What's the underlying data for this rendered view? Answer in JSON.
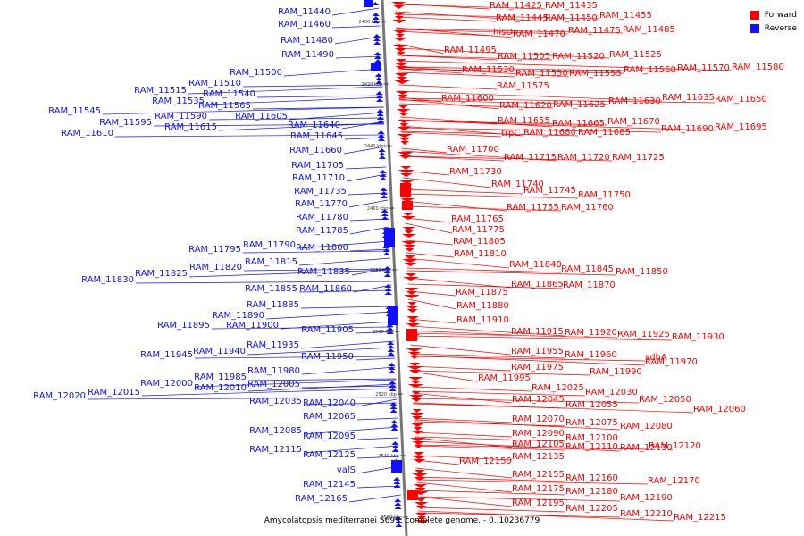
{
  "legend": {
    "forward_label": "Forward",
    "reverse_label": "Reverse",
    "forward_color": "#ff0000",
    "reverse_color": "#1010ff"
  },
  "caption": "Amycolatopsis mediterranei S699, complete genome. - 0..10236779",
  "axis_ticks": [
    "2400 kbp",
    "2420 kbp",
    "2440 kbp",
    "2460 kbp",
    "2480 kbp",
    "2500 kbp",
    "2520 kbp",
    "2540 kbp",
    "2560 kbp"
  ],
  "forward_genes": [
    "RAM_11425",
    "RAM_11435",
    "RAM_11445",
    "RAM_11450",
    "RAM_11455",
    "hisD",
    "RAM_11470",
    "RAM_11475",
    "RAM_11485",
    "RAM_11495",
    "RAM_11505",
    "RAM_11520",
    "RAM_11525",
    "RAM_11530",
    "RAM_11550",
    "RAM_11555",
    "RAM_11560",
    "RAM_11570",
    "RAM_11580",
    "RAM_11575",
    "RAM_11600",
    "RAM_11620",
    "RAM_11625",
    "RAM_11630",
    "RAM_11635",
    "RAM_11650",
    "RAM_11655",
    "RAM_11665",
    "RAM_11670",
    "trpC",
    "RAM_11680",
    "RAM_11685",
    "RAM_11690",
    "RAM_11695",
    "RAM_11700",
    "RAM_11715",
    "RAM_11720",
    "RAM_11725",
    "RAM_11730",
    "RAM_11740",
    "RAM_11745",
    "RAM_11750",
    "RAM_11755",
    "RAM_11760",
    "RAM_11765",
    "RAM_11775",
    "RAM_11805",
    "RAM_11810",
    "RAM_11840",
    "RAM_11845",
    "RAM_11850",
    "RAM_11865",
    "RAM_11870",
    "RAM_11875",
    "RAM_11880",
    "RAM_11910",
    "RAM_11915",
    "RAM_11920",
    "RAM_11925",
    "RAM_11930",
    "RAM_11955",
    "RAM_11960",
    "sdhA",
    "RAM_11970",
    "RAM_11975",
    "RAM_11990",
    "RAM_11995",
    "RAM_12025",
    "RAM_12030",
    "RAM_12045",
    "RAM_12050",
    "RAM_12055",
    "RAM_12060",
    "RAM_12070",
    "RAM_12075",
    "RAM_12080",
    "RAM_12090",
    "RAM_12100",
    "RAM_12105",
    "RAM_12110",
    "RAM_12120",
    "RAM_12130",
    "RAM_12135",
    "RAM_12150",
    "RAM_12155",
    "RAM_12160",
    "RAM_12170",
    "RAM_12175",
    "RAM_12180",
    "RAM_12190",
    "RAM_12195",
    "RAM_12205",
    "RAM_12210",
    "RAM_12215"
  ],
  "reverse_genes": [
    "RAM_11440",
    "RAM_11460",
    "RAM_11480",
    "RAM_11490",
    "RAM_11500",
    "RAM_11510",
    "RAM_11515",
    "RAM_11540",
    "RAM_11535",
    "RAM_11565",
    "RAM_11545",
    "RAM_11590",
    "RAM_11605",
    "RAM_11595",
    "RAM_11615",
    "RAM_11610",
    "RAM_11640",
    "RAM_11645",
    "RAM_11660",
    "RAM_11705",
    "RAM_11710",
    "RAM_11735",
    "RAM_11770",
    "RAM_11780",
    "RAM_11785",
    "RAM_11795",
    "RAM_11790",
    "RAM_11800",
    "RAM_11815",
    "RAM_11820",
    "RAM_11825",
    "RAM_11830",
    "RAM_11835",
    "RAM_11855",
    "RAM_11860",
    "RAM_11885",
    "RAM_11890",
    "RAM_11895",
    "RAM_11900",
    "RAM_11905",
    "RAM_11935",
    "RAM_11945",
    "RAM_11940",
    "RAM_11950",
    "RAM_11980",
    "RAM_11985",
    "RAM_12000",
    "RAM_12005",
    "RAM_12010",
    "RAM_12020",
    "RAM_12015",
    "RAM_12035",
    "RAM_12040",
    "RAM_12065",
    "RAM_12085",
    "RAM_12095",
    "RAM_12115",
    "RAM_12125",
    "valS",
    "RAM_12145",
    "RAM_12165"
  ]
}
